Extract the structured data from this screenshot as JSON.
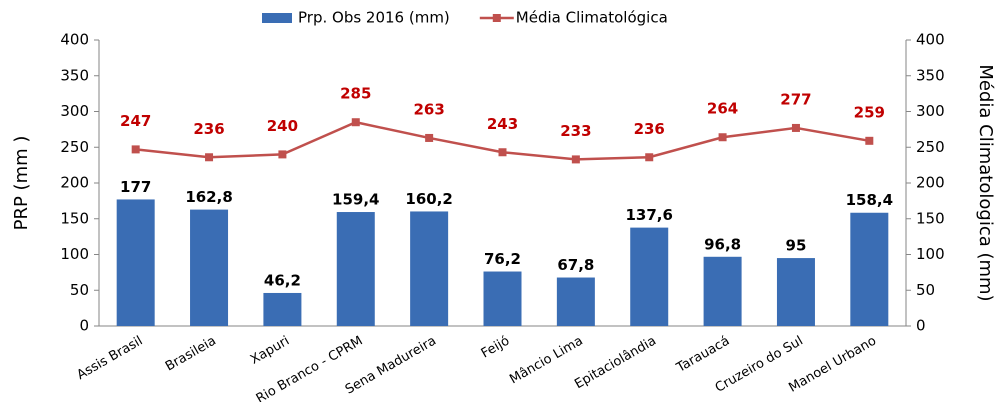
{
  "chart_data": {
    "type": "bar",
    "categories": [
      "Assis Brasil",
      "Brasileia",
      "Xapuri",
      "Rio Branco - CPRM",
      "Sena Madureira",
      "Feijó",
      "Mâncio Lima",
      "Epitaciolândia",
      "Tarauacá",
      "Cruzeiro do Sul",
      "Manoel Urbano"
    ],
    "series": [
      {
        "name": "Prp. Obs 2016 (mm)",
        "color": "#3a6db4",
        "values": [
          177,
          162.8,
          46.2,
          159.4,
          160.2,
          76.2,
          67.8,
          137.6,
          96.8,
          95,
          158.4
        ],
        "value_labels": [
          "177",
          "162,8",
          "46,2",
          "159,4",
          "160,2",
          "76,2",
          "67,8",
          "137,6",
          "96,8",
          "95",
          "158,4"
        ]
      },
      {
        "name": "Média Climatológica",
        "type": "line",
        "axis": "y2",
        "color": "#c0504d",
        "label_color": "#c00000",
        "values": [
          247,
          236,
          240,
          285,
          263,
          243,
          233,
          236,
          264,
          277,
          259
        ]
      }
    ],
    "ylabel": "PRP (mm )",
    "y2label": "Média Climatologica (mm)",
    "ylim": [
      0,
      400
    ],
    "yticks": [
      0,
      50,
      100,
      150,
      200,
      250,
      300,
      350,
      400
    ],
    "y2lim": [
      0,
      400
    ],
    "y2ticks": [
      0,
      50,
      100,
      150,
      200,
      250,
      300,
      350,
      400
    ],
    "grid": false,
    "legend": "top"
  }
}
